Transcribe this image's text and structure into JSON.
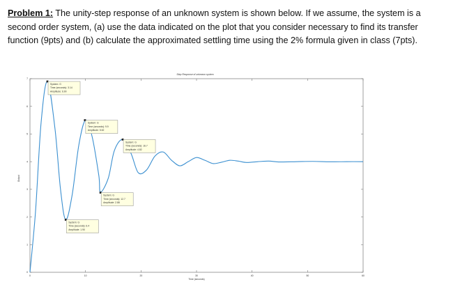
{
  "problem": {
    "label": "Problem 1:",
    "text": " The unity-step response of an unknown system is shown below. If we assume, the system is a second order system, (a) use the data indicated on the plot that you consider necessary to find its transfer function (9pts) and (b) calculate the approximated settling time using the 2% formula given in class (7pts)."
  },
  "chart_data": {
    "type": "line",
    "title": "Step Response of unknown system",
    "xlabel": "Time (seconds)",
    "ylabel": "Output",
    "xlim": [
      0,
      60
    ],
    "ylim": [
      0,
      7
    ],
    "xticks": [
      0,
      10,
      20,
      30,
      40,
      50,
      60
    ],
    "yticks": [
      0,
      1,
      2,
      3,
      4,
      5,
      6,
      7
    ],
    "grid": false,
    "line_color": "#3a8fd0",
    "steady_state": 4,
    "series": [
      {
        "points": [
          [
            0,
            0
          ],
          [
            1,
            2.2
          ],
          [
            2,
            5.4
          ],
          [
            3.14,
            6.9
          ],
          [
            4.5,
            5.2
          ],
          [
            5.5,
            3.0
          ],
          [
            6.44,
            1.9
          ],
          [
            7.6,
            2.8
          ],
          [
            8.8,
            4.6
          ],
          [
            10,
            5.5
          ],
          [
            11.2,
            4.9
          ],
          [
            12.4,
            3.5
          ],
          [
            12.7,
            2.9
          ],
          [
            14.1,
            3.4
          ],
          [
            15.2,
            4.4
          ],
          [
            16.7,
            4.8
          ],
          [
            18.2,
            4.3
          ],
          [
            19.5,
            3.6
          ],
          [
            21,
            3.7
          ],
          [
            22.5,
            4.2
          ],
          [
            24,
            4.35
          ],
          [
            25.5,
            4.05
          ],
          [
            27,
            3.85
          ],
          [
            28.5,
            4.0
          ],
          [
            30,
            4.15
          ],
          [
            31.5,
            4.05
          ],
          [
            33,
            3.93
          ],
          [
            34.5,
            3.98
          ],
          [
            36,
            4.05
          ],
          [
            37.5,
            4.02
          ],
          [
            39,
            3.97
          ],
          [
            41,
            4.0
          ],
          [
            43,
            4.02
          ],
          [
            45,
            3.99
          ],
          [
            48,
            4.0
          ],
          [
            51,
            4.01
          ],
          [
            54,
            3.995
          ],
          [
            57,
            4.0
          ],
          [
            60,
            4.0
          ]
        ]
      }
    ],
    "datatips": [
      {
        "x": 3.14,
        "y": 6.9,
        "lines": [
          "System: G",
          "Time (seconds): 3.14",
          "Amplitude: 6.90"
        ]
      },
      {
        "x": 9.9,
        "y": 5.5,
        "lines": [
          "System: G",
          "Time (seconds): 9.9",
          "Amplitude: 5.52"
        ]
      },
      {
        "x": 16.7,
        "y": 4.8,
        "lines": [
          "System: G",
          "Time (seconds): 16.7",
          "Amplitude: 4.82"
        ]
      },
      {
        "x": 12.7,
        "y": 2.88,
        "lines": [
          "System: G",
          "Time (seconds): 12.7",
          "Amplitude: 2.88"
        ]
      },
      {
        "x": 6.44,
        "y": 1.9,
        "lines": [
          "System: G",
          "Time (seconds): 6.4",
          "Amplitude: 1.90"
        ]
      }
    ]
  }
}
